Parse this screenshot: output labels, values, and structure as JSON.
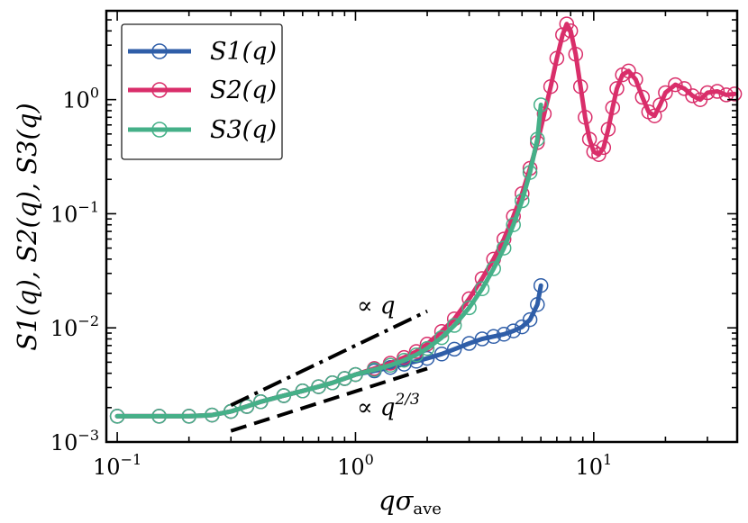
{
  "chart_data": {
    "type": "scatter",
    "xlabel": "qσ",
    "xlabel_sub": "ave",
    "ylabel": "S1(q), S2(q), S3(q)",
    "xscale": "log",
    "yscale": "log",
    "xlim": [
      0.09,
      40
    ],
    "ylim": [
      0.001,
      6
    ],
    "x_ticks": [
      {
        "value": 0.1,
        "base": "10",
        "exp": "−1"
      },
      {
        "value": 1,
        "base": "10",
        "exp": "0"
      },
      {
        "value": 10,
        "base": "10",
        "exp": "1"
      }
    ],
    "y_ticks": [
      {
        "value": 0.001,
        "base": "10",
        "exp": "−3"
      },
      {
        "value": 0.01,
        "base": "10",
        "exp": "−2"
      },
      {
        "value": 0.1,
        "base": "10",
        "exp": "−1"
      },
      {
        "value": 1,
        "base": "10",
        "exp": "0"
      }
    ],
    "grid": false,
    "legend_position": "top-left",
    "series": [
      {
        "name": "S1(q)",
        "color": "#2f5ea8",
        "points": [
          [
            0.1,
            0.00168
          ],
          [
            0.15,
            0.00168
          ],
          [
            0.2,
            0.00168
          ],
          [
            0.25,
            0.00172
          ],
          [
            0.3,
            0.00185
          ],
          [
            0.35,
            0.00205
          ],
          [
            0.4,
            0.00225
          ],
          [
            0.5,
            0.00255
          ],
          [
            0.6,
            0.0028
          ],
          [
            0.7,
            0.00305
          ],
          [
            0.8,
            0.0033
          ],
          [
            0.9,
            0.0036
          ],
          [
            1.0,
            0.0039
          ],
          [
            1.2,
            0.0042
          ],
          [
            1.4,
            0.0045
          ],
          [
            1.6,
            0.0048
          ],
          [
            1.8,
            0.0051
          ],
          [
            2.0,
            0.0054
          ],
          [
            2.3,
            0.0059
          ],
          [
            2.6,
            0.0065
          ],
          [
            3.0,
            0.0073
          ],
          [
            3.4,
            0.008
          ],
          [
            3.8,
            0.0084
          ],
          [
            4.2,
            0.0088
          ],
          [
            4.6,
            0.0094
          ],
          [
            5.0,
            0.0102
          ],
          [
            5.4,
            0.0118
          ],
          [
            5.8,
            0.016
          ],
          [
            6.0,
            0.0235
          ]
        ]
      },
      {
        "name": "S2(q)",
        "color": "#d92e6a",
        "points": [
          [
            0.1,
            0.00168
          ],
          [
            0.15,
            0.00168
          ],
          [
            0.2,
            0.00168
          ],
          [
            0.25,
            0.00172
          ],
          [
            0.3,
            0.00185
          ],
          [
            0.35,
            0.00205
          ],
          [
            0.4,
            0.00225
          ],
          [
            0.5,
            0.00255
          ],
          [
            0.6,
            0.0028
          ],
          [
            0.7,
            0.00305
          ],
          [
            0.8,
            0.0033
          ],
          [
            0.9,
            0.0036
          ],
          [
            1.0,
            0.0039
          ],
          [
            1.2,
            0.0044
          ],
          [
            1.4,
            0.0049
          ],
          [
            1.6,
            0.0055
          ],
          [
            1.8,
            0.0062
          ],
          [
            2.0,
            0.0072
          ],
          [
            2.3,
            0.0093
          ],
          [
            2.6,
            0.012
          ],
          [
            3.0,
            0.018
          ],
          [
            3.4,
            0.027
          ],
          [
            3.8,
            0.04
          ],
          [
            4.2,
            0.06
          ],
          [
            4.6,
            0.095
          ],
          [
            5.0,
            0.15
          ],
          [
            5.4,
            0.25
          ],
          [
            5.8,
            0.42
          ],
          [
            6.2,
            0.75
          ],
          [
            6.6,
            1.3
          ],
          [
            7.0,
            2.3
          ],
          [
            7.4,
            3.7
          ],
          [
            7.7,
            4.6
          ],
          [
            8.0,
            4.0
          ],
          [
            8.4,
            2.5
          ],
          [
            8.8,
            1.3
          ],
          [
            9.2,
            0.7
          ],
          [
            9.6,
            0.45
          ],
          [
            10.0,
            0.35
          ],
          [
            10.5,
            0.33
          ],
          [
            11.0,
            0.38
          ],
          [
            11.5,
            0.55
          ],
          [
            12.0,
            0.85
          ],
          [
            12.5,
            1.25
          ],
          [
            13.2,
            1.65
          ],
          [
            14.0,
            1.78
          ],
          [
            15.0,
            1.5
          ],
          [
            16.0,
            1.05
          ],
          [
            17.0,
            0.78
          ],
          [
            18.0,
            0.72
          ],
          [
            19.0,
            0.9
          ],
          [
            20.0,
            1.15
          ],
          [
            22.0,
            1.35
          ],
          [
            24.0,
            1.25
          ],
          [
            26.0,
            1.08
          ],
          [
            28.0,
            1.0
          ],
          [
            30.0,
            1.15
          ],
          [
            33.0,
            1.18
          ],
          [
            36.0,
            1.1
          ],
          [
            39.0,
            1.12
          ]
        ]
      },
      {
        "name": "S3(q)",
        "color": "#45b088",
        "points": [
          [
            0.1,
            0.00168
          ],
          [
            0.15,
            0.00168
          ],
          [
            0.2,
            0.00168
          ],
          [
            0.25,
            0.00172
          ],
          [
            0.3,
            0.00185
          ],
          [
            0.35,
            0.00205
          ],
          [
            0.4,
            0.00225
          ],
          [
            0.5,
            0.00255
          ],
          [
            0.6,
            0.0028
          ],
          [
            0.7,
            0.00305
          ],
          [
            0.8,
            0.0033
          ],
          [
            0.9,
            0.0036
          ],
          [
            1.0,
            0.0039
          ],
          [
            1.2,
            0.0043
          ],
          [
            1.4,
            0.0047
          ],
          [
            1.6,
            0.0052
          ],
          [
            1.8,
            0.0058
          ],
          [
            2.0,
            0.0066
          ],
          [
            2.3,
            0.0082
          ],
          [
            2.6,
            0.0105
          ],
          [
            3.0,
            0.015
          ],
          [
            3.4,
            0.022
          ],
          [
            3.8,
            0.033
          ],
          [
            4.2,
            0.05
          ],
          [
            4.6,
            0.08
          ],
          [
            5.0,
            0.13
          ],
          [
            5.4,
            0.23
          ],
          [
            5.8,
            0.45
          ],
          [
            6.0,
            0.9
          ]
        ]
      }
    ],
    "guide_lines": [
      {
        "label": "∝ q",
        "style": "dashdot",
        "points": [
          [
            0.3,
            0.0021
          ],
          [
            2.0,
            0.014
          ]
        ]
      },
      {
        "label": "∝ q^(2/3)",
        "style": "dashed",
        "points": [
          [
            0.3,
            0.00125
          ],
          [
            2.0,
            0.0044
          ]
        ]
      }
    ],
    "annotations": [
      {
        "label_base": "∝ q",
        "label_sup": ""
      },
      {
        "label_base": "∝ q",
        "label_sup": "2/3"
      }
    ]
  }
}
